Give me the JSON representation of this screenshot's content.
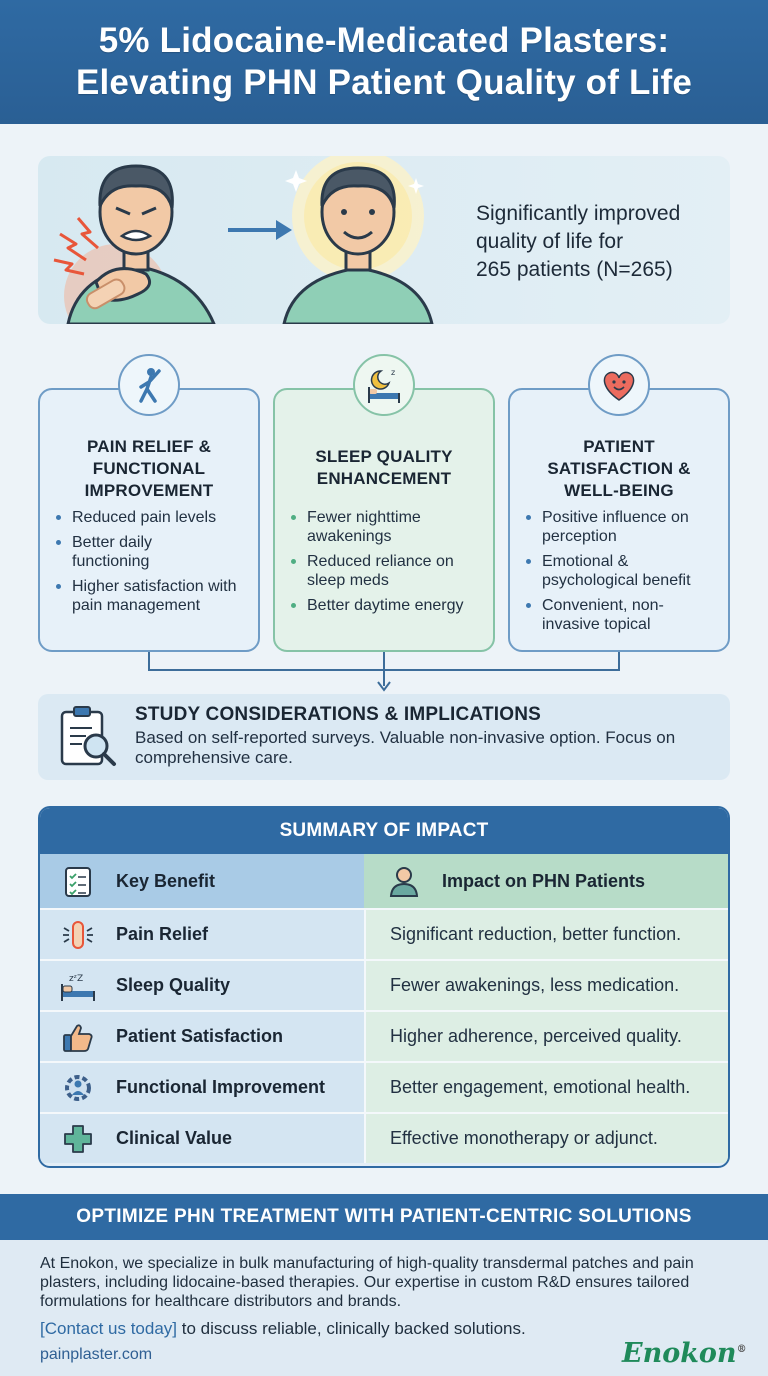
{
  "header": {
    "title_line1": "5% Lidocaine-Medicated Plasters:",
    "title_line2": "Elevating PHN Patient Quality of Life"
  },
  "hero": {
    "text_line1": "Significantly improved",
    "text_line2": "quality of life for",
    "text_line3": "265 patients (N=265)"
  },
  "cards": [
    {
      "icon": "stretching-person-icon",
      "title_line1": "PAIN RELIEF &",
      "title_line2": "FUNCTIONAL",
      "title_line3": "IMPROVEMENT",
      "bullets": [
        "Reduced pain levels",
        "Better daily functioning",
        "Higher satisfaction with pain management"
      ]
    },
    {
      "icon": "sleeping-bed-moon-icon",
      "title_line1": "SLEEP QUALITY",
      "title_line2": "ENHANCEMENT",
      "bullets": [
        "Fewer nighttime awakenings",
        "Reduced reliance on sleep meds",
        "Better daytime energy"
      ]
    },
    {
      "icon": "smiling-heart-icon",
      "title_line1": "PATIENT",
      "title_line2": "SATISFACTION &",
      "title_line3": "WELL-BEING",
      "bullets": [
        "Positive influence on perception",
        "Emotional & psychological benefit",
        "Convenient, non-invasive topical"
      ]
    }
  ],
  "study": {
    "title": "STUDY CONSIDERATIONS & IMPLICATIONS",
    "text": "Based on self-reported surveys. Valuable non-invasive option. Focus on comprehensive care."
  },
  "summary": {
    "title": "SUMMARY OF IMPACT",
    "head_col1": "Key Benefit",
    "head_col2": "Impact on PHN Patients",
    "rows": [
      {
        "icon": "bandage-pain-icon",
        "benefit": "Pain Relief",
        "impact": "Significant reduction, better function."
      },
      {
        "icon": "sleep-bed-icon",
        "benefit": "Sleep Quality",
        "impact": "Fewer awakenings, less medication."
      },
      {
        "icon": "thumbs-up-icon",
        "benefit": "Patient Satisfaction",
        "impact": "Higher adherence, perceived quality."
      },
      {
        "icon": "gear-person-icon",
        "benefit": "Functional Improvement",
        "impact": "Better engagement, emotional health."
      },
      {
        "icon": "medical-cross-icon",
        "benefit": "Clinical Value",
        "impact": "Effective monotherapy or adjunct."
      }
    ]
  },
  "footer": {
    "cta": "OPTIMIZE PHN TREATMENT WITH PATIENT-CENTRIC SOLUTIONS",
    "body": "At Enokon, we specialize in bulk manufacturing of high-quality transdermal patches and pain plasters, including lidocaine-based therapies. Our expertise in custom R&D ensures tailored formulations for healthcare distributors and brands.",
    "contact_link": "[Contact us today]",
    "contact_rest": " to discuss reliable, clinically backed solutions.",
    "url": "painplaster.com",
    "logo": "Enokon",
    "logo_mark": "®"
  },
  "colors": {
    "primary_blue": "#2f6aa3",
    "green_accent": "#86c3a7",
    "logo_green": "#1f8a5a"
  }
}
